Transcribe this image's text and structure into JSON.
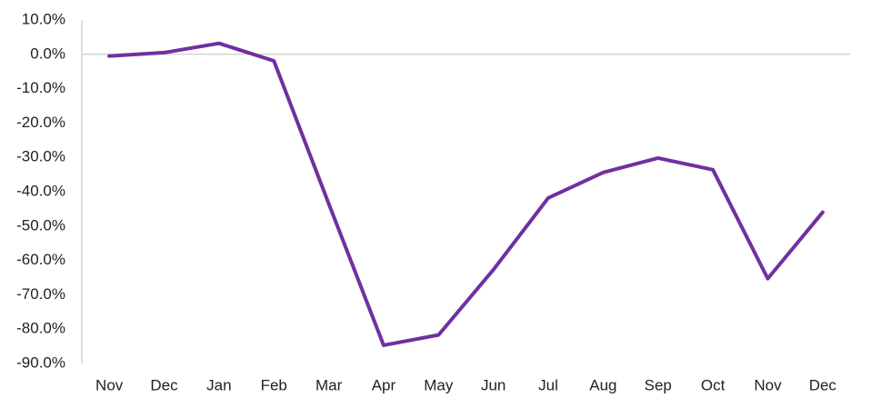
{
  "chart_data": {
    "type": "line",
    "categories": [
      "Nov",
      "Dec",
      "Jan",
      "Feb",
      "Mar",
      "Apr",
      "May",
      "Jun",
      "Jul",
      "Aug",
      "Sep",
      "Oct",
      "Nov",
      "Dec"
    ],
    "values": [
      -0.5,
      0.5,
      3.2,
      -1.9,
      -43.5,
      -84.7,
      -81.7,
      -62.7,
      -41.8,
      -34.4,
      -30.2,
      -33.6,
      -65.3,
      -46.0
    ],
    "color": "#7030a0",
    "ylim": [
      -90,
      10
    ],
    "yticks": [
      {
        "value": -90,
        "label": "-90.0%"
      },
      {
        "value": -80,
        "label": "-80.0%"
      },
      {
        "value": -70,
        "label": "-70.0%"
      },
      {
        "value": -60,
        "label": "-60.0%"
      },
      {
        "value": -50,
        "label": "-50.0%"
      },
      {
        "value": -40,
        "label": "-40.0%"
      },
      {
        "value": -30,
        "label": "-30.0%"
      },
      {
        "value": -20,
        "label": "-20.0%"
      },
      {
        "value": -10,
        "label": "-10.0%"
      },
      {
        "value": 0,
        "label": "0.0%"
      },
      {
        "value": 10,
        "label": "10.0%"
      }
    ],
    "grid": false
  }
}
